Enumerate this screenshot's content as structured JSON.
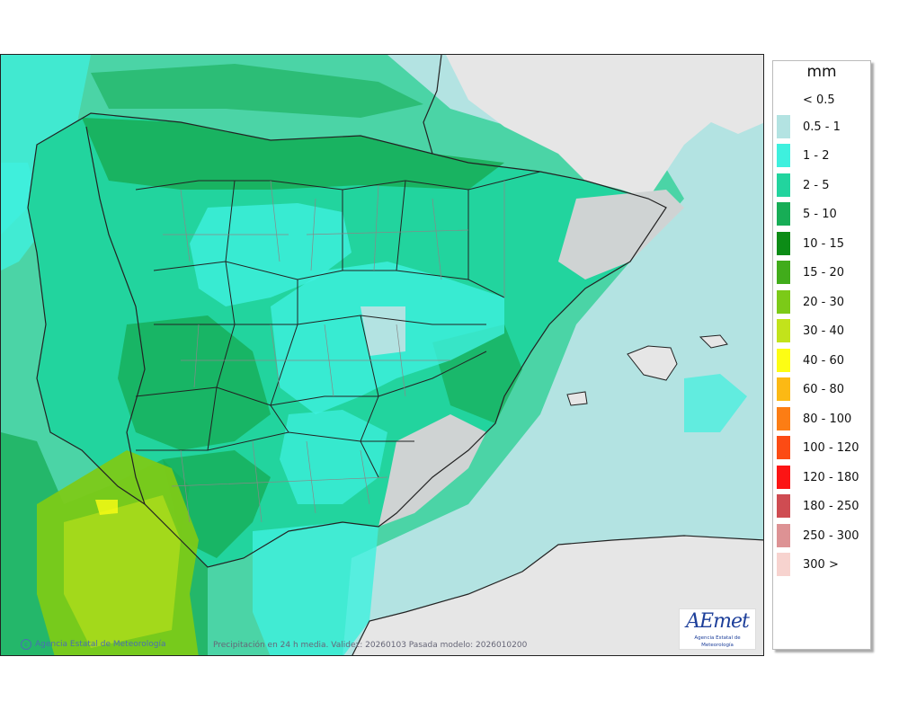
{
  "legend": {
    "unit": "mm",
    "items": [
      {
        "label": "< 0.5",
        "color": ""
      },
      {
        "label": "0.5 - 1",
        "color": "#b3e3e2"
      },
      {
        "label": "1 - 2",
        "color": "#3ef0de"
      },
      {
        "label": "2 - 5",
        "color": "#22d49e"
      },
      {
        "label": "5 - 10",
        "color": "#17ad56"
      },
      {
        "label": "10 - 15",
        "color": "#0c8c16"
      },
      {
        "label": "15 - 20",
        "color": "#41ac1b"
      },
      {
        "label": "20 - 30",
        "color": "#7cca18"
      },
      {
        "label": "30 - 40",
        "color": "#c2e31b"
      },
      {
        "label": "40 - 60",
        "color": "#fdfd14"
      },
      {
        "label": "60 - 80",
        "color": "#fcb914"
      },
      {
        "label": "80 - 100",
        "color": "#fc7d14"
      },
      {
        "label": "100 - 120",
        "color": "#fc4b14"
      },
      {
        "label": "120 - 180",
        "color": "#fc1414"
      },
      {
        "label": "180 - 250",
        "color": "#cf4c52"
      },
      {
        "label": "250 - 300",
        "color": "#dd9294"
      },
      {
        "label": "300 >",
        "color": "#f7d3cf"
      }
    ]
  },
  "map": {
    "copyright": "Agencia Estatal de Meteorología",
    "caption": "Precipitación en 24 h media. Validez: 20260103 Pasada modelo: 2026010200",
    "logo": {
      "wordmark": "AEmet",
      "subtitle": "Agencia Estatal de Meteorología"
    },
    "colors": {
      "sea_low": "#b3e3e2",
      "land_nodata": "#e6e6e6",
      "border": "#222222",
      "province_border": "#888888"
    }
  }
}
